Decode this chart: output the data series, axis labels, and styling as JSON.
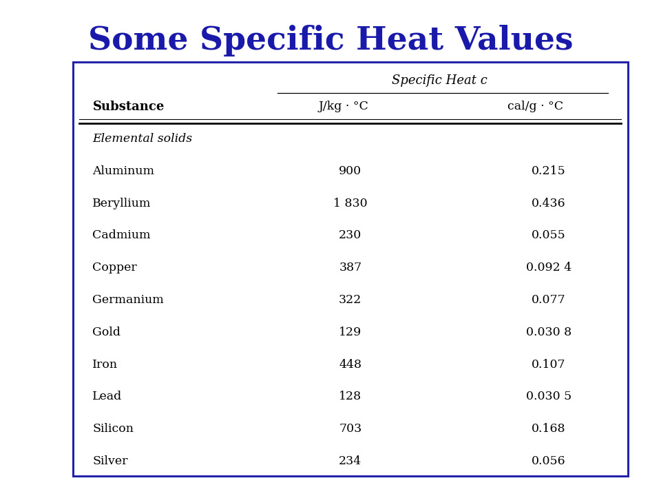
{
  "title": "Some Specific Heat Values",
  "title_color": "#1a1aaa",
  "title_fontsize": 34,
  "bg_color": "#ffffff",
  "border_color": "#2222aa",
  "header1": "Specific Heat c",
  "header2_col1": "Substance",
  "header2_col2": "J/kg · °C",
  "header2_col3": "cal/g · °C",
  "category_label": "Elemental solids",
  "substances": [
    "Aluminum",
    "Beryllium",
    "Cadmium",
    "Copper",
    "Germanium",
    "Gold",
    "Iron",
    "Lead",
    "Silicon",
    "Silver"
  ],
  "jkg": [
    "900",
    "1 830",
    "230",
    "387",
    "322",
    "129",
    "448",
    "128",
    "703",
    "234"
  ],
  "calg": [
    "0.215",
    "0.436",
    "0.055",
    "0.092 4",
    "0.077",
    "0.030 8",
    "0.107",
    "0.030 5",
    "0.168",
    "0.056"
  ]
}
